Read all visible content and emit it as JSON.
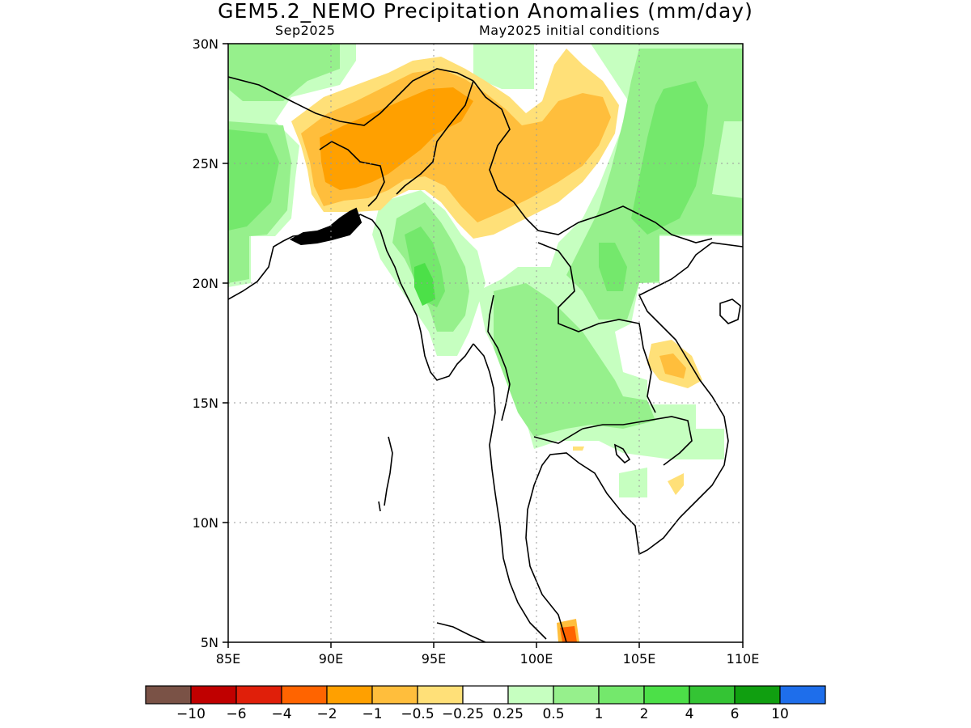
{
  "title": "GEM5.2_NEMO Precipitation Anomalies (mm/day)",
  "subtitle_left": "Sep2025",
  "subtitle_right": "May2025 initial conditions",
  "map": {
    "lon_range": [
      85,
      110
    ],
    "lat_range": [
      5,
      30
    ],
    "x_ticks": [
      "85E",
      "90E",
      "95E",
      "100E",
      "105E",
      "110E"
    ],
    "y_ticks": [
      "5N",
      "10N",
      "15N",
      "20N",
      "25N",
      "30N"
    ],
    "grid": true
  },
  "colorbar": {
    "colors": [
      "#7a5246",
      "#c00000",
      "#e01f0a",
      "#ff6400",
      "#ffa000",
      "#ffbe3c",
      "#ffe078",
      "#ffffff",
      "#c6ffc0",
      "#96f08c",
      "#74e86c",
      "#4ce048",
      "#34c434",
      "#109f10",
      "#1e6eeb"
    ],
    "labels": [
      "−10",
      "−6",
      "−4",
      "−2",
      "−1",
      "−0.5",
      "−0.25",
      "0.25",
      "0.5",
      "1",
      "2",
      "4",
      "6",
      "10"
    ]
  },
  "legend_colors": {
    "pos_0_25": "#c6ffc0",
    "pos_0_5": "#96f08c",
    "pos_1": "#74e86c",
    "pos_2": "#4ce048",
    "neg_0_25": "#ffe078",
    "neg_0_5": "#ffbe3c",
    "neg_1": "#ffa000",
    "neg_2": "#ff6400"
  }
}
